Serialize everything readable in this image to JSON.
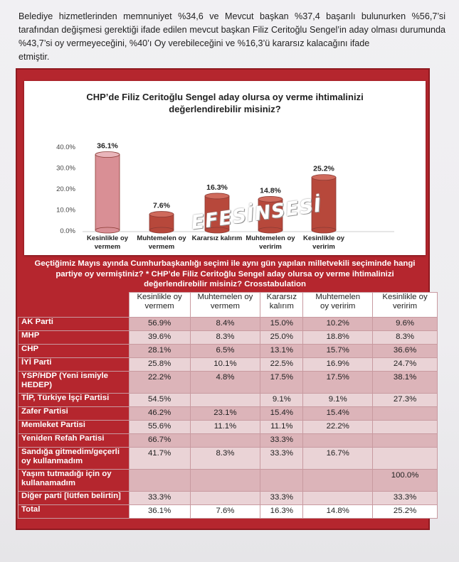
{
  "intro": {
    "line1": "Belediye hizmetlerinden memnuniyet %34,6 ve Mevcut başkan %37,4 başarılı bulunurken %56,7’si tarafından değişmesi gerektiği ifade edilen mevcut başkan Filiz Ceritoğlu Sengel’in aday olması durumunda %43,7’si oy vermeyeceğini, %40’ı Oy verebileceğini ve %16,3’ü kararsız kalacağını ifade",
    "line2": "etmiştir."
  },
  "watermark": "EFESİNSESİ",
  "chart_data": {
    "type": "bar",
    "title_line1": "CHP’de Filiz Ceritoğlu Sengel aday olursa oy verme ihtimalinizi",
    "title_line2": "değerlendirebilir misiniz?",
    "categories": [
      [
        "Kesinlikle oy",
        "vermem"
      ],
      [
        "Muhtemelen oy",
        "vermem"
      ],
      [
        "Kararsız kalırım"
      ],
      [
        "Muhtemelen oy",
        "veririm"
      ],
      [
        "Kesinlikle oy",
        "veririm"
      ]
    ],
    "values": [
      36.1,
      7.6,
      16.3,
      14.8,
      25.2
    ],
    "value_labels": [
      "36.1%",
      "7.6%",
      "16.3%",
      "14.8%",
      "25.2%"
    ],
    "yticks": [
      "0.0%",
      "10.0%",
      "20.0%",
      "30.0%",
      "40.0%"
    ],
    "ylim": [
      0,
      40
    ],
    "colors": {
      "first": "#d98f95",
      "rest": "#b7483b"
    }
  },
  "table": {
    "title_line1": "Geçtiğimiz Mayıs ayında Cumhurbaşkanlığı seçimi ile aynı gün yapılan milletvekili seçiminde hangi",
    "title_line2": "partiye oy vermiştiniz?  * CHP’de Filiz Ceritoğlu Sengel aday olursa oy verme ihtimalinizi",
    "title_line3": "değerlendirebilir misiniz?  Crosstabulation",
    "headers": [
      [
        "Kesinlikle oy",
        "vermem"
      ],
      [
        "Muhtemelen oy",
        "vermem"
      ],
      [
        "Kararsız",
        "kalırım"
      ],
      [
        "Muhtemelen",
        "oy veririm"
      ],
      [
        "Kesinlikle oy",
        "veririm"
      ]
    ],
    "rows": [
      {
        "label": [
          "AK Parti"
        ],
        "values": [
          "56.9%",
          "8.4%",
          "15.0%",
          "10.2%",
          "9.6%"
        ]
      },
      {
        "label": [
          "MHP"
        ],
        "values": [
          "39.6%",
          "8.3%",
          "25.0%",
          "18.8%",
          "8.3%"
        ]
      },
      {
        "label": [
          "CHP"
        ],
        "values": [
          "28.1%",
          "6.5%",
          "13.1%",
          "15.7%",
          "36.6%"
        ]
      },
      {
        "label": [
          "İYİ Parti"
        ],
        "values": [
          "25.8%",
          "10.1%",
          "22.5%",
          "16.9%",
          "24.7%"
        ]
      },
      {
        "label": [
          "YSP/HDP (Yeni ismiyle",
          "HEDEP)"
        ],
        "values": [
          "22.2%",
          "4.8%",
          "17.5%",
          "17.5%",
          "38.1%"
        ]
      },
      {
        "label": [
          "TİP, Türkiye İşçi Partisi"
        ],
        "values": [
          "54.5%",
          "",
          "9.1%",
          "9.1%",
          "27.3%"
        ]
      },
      {
        "label": [
          "Zafer Partisi"
        ],
        "values": [
          "46.2%",
          "23.1%",
          "15.4%",
          "15.4%",
          ""
        ]
      },
      {
        "label": [
          "Memleket Partisi"
        ],
        "values": [
          "55.6%",
          "11.1%",
          "11.1%",
          "22.2%",
          ""
        ]
      },
      {
        "label": [
          "Yeniden Refah Partisi"
        ],
        "values": [
          "66.7%",
          "",
          "33.3%",
          "",
          ""
        ]
      },
      {
        "label": [
          "Sandığa gitmedim/geçerli",
          "oy kullanmadım"
        ],
        "values": [
          "41.7%",
          "8.3%",
          "33.3%",
          "16.7%",
          ""
        ]
      },
      {
        "label": [
          "Yaşım tutmadığı için oy",
          "kullanamadım"
        ],
        "values": [
          "",
          "",
          "",
          "",
          "100.0%"
        ]
      },
      {
        "label": [
          "Diğer parti [lütfen belirtin]"
        ],
        "values": [
          "33.3%",
          "",
          "33.3%",
          "",
          "33.3%"
        ]
      },
      {
        "label": [
          "Total"
        ],
        "values": [
          "36.1%",
          "7.6%",
          "16.3%",
          "14.8%",
          "25.2%"
        ]
      }
    ]
  }
}
